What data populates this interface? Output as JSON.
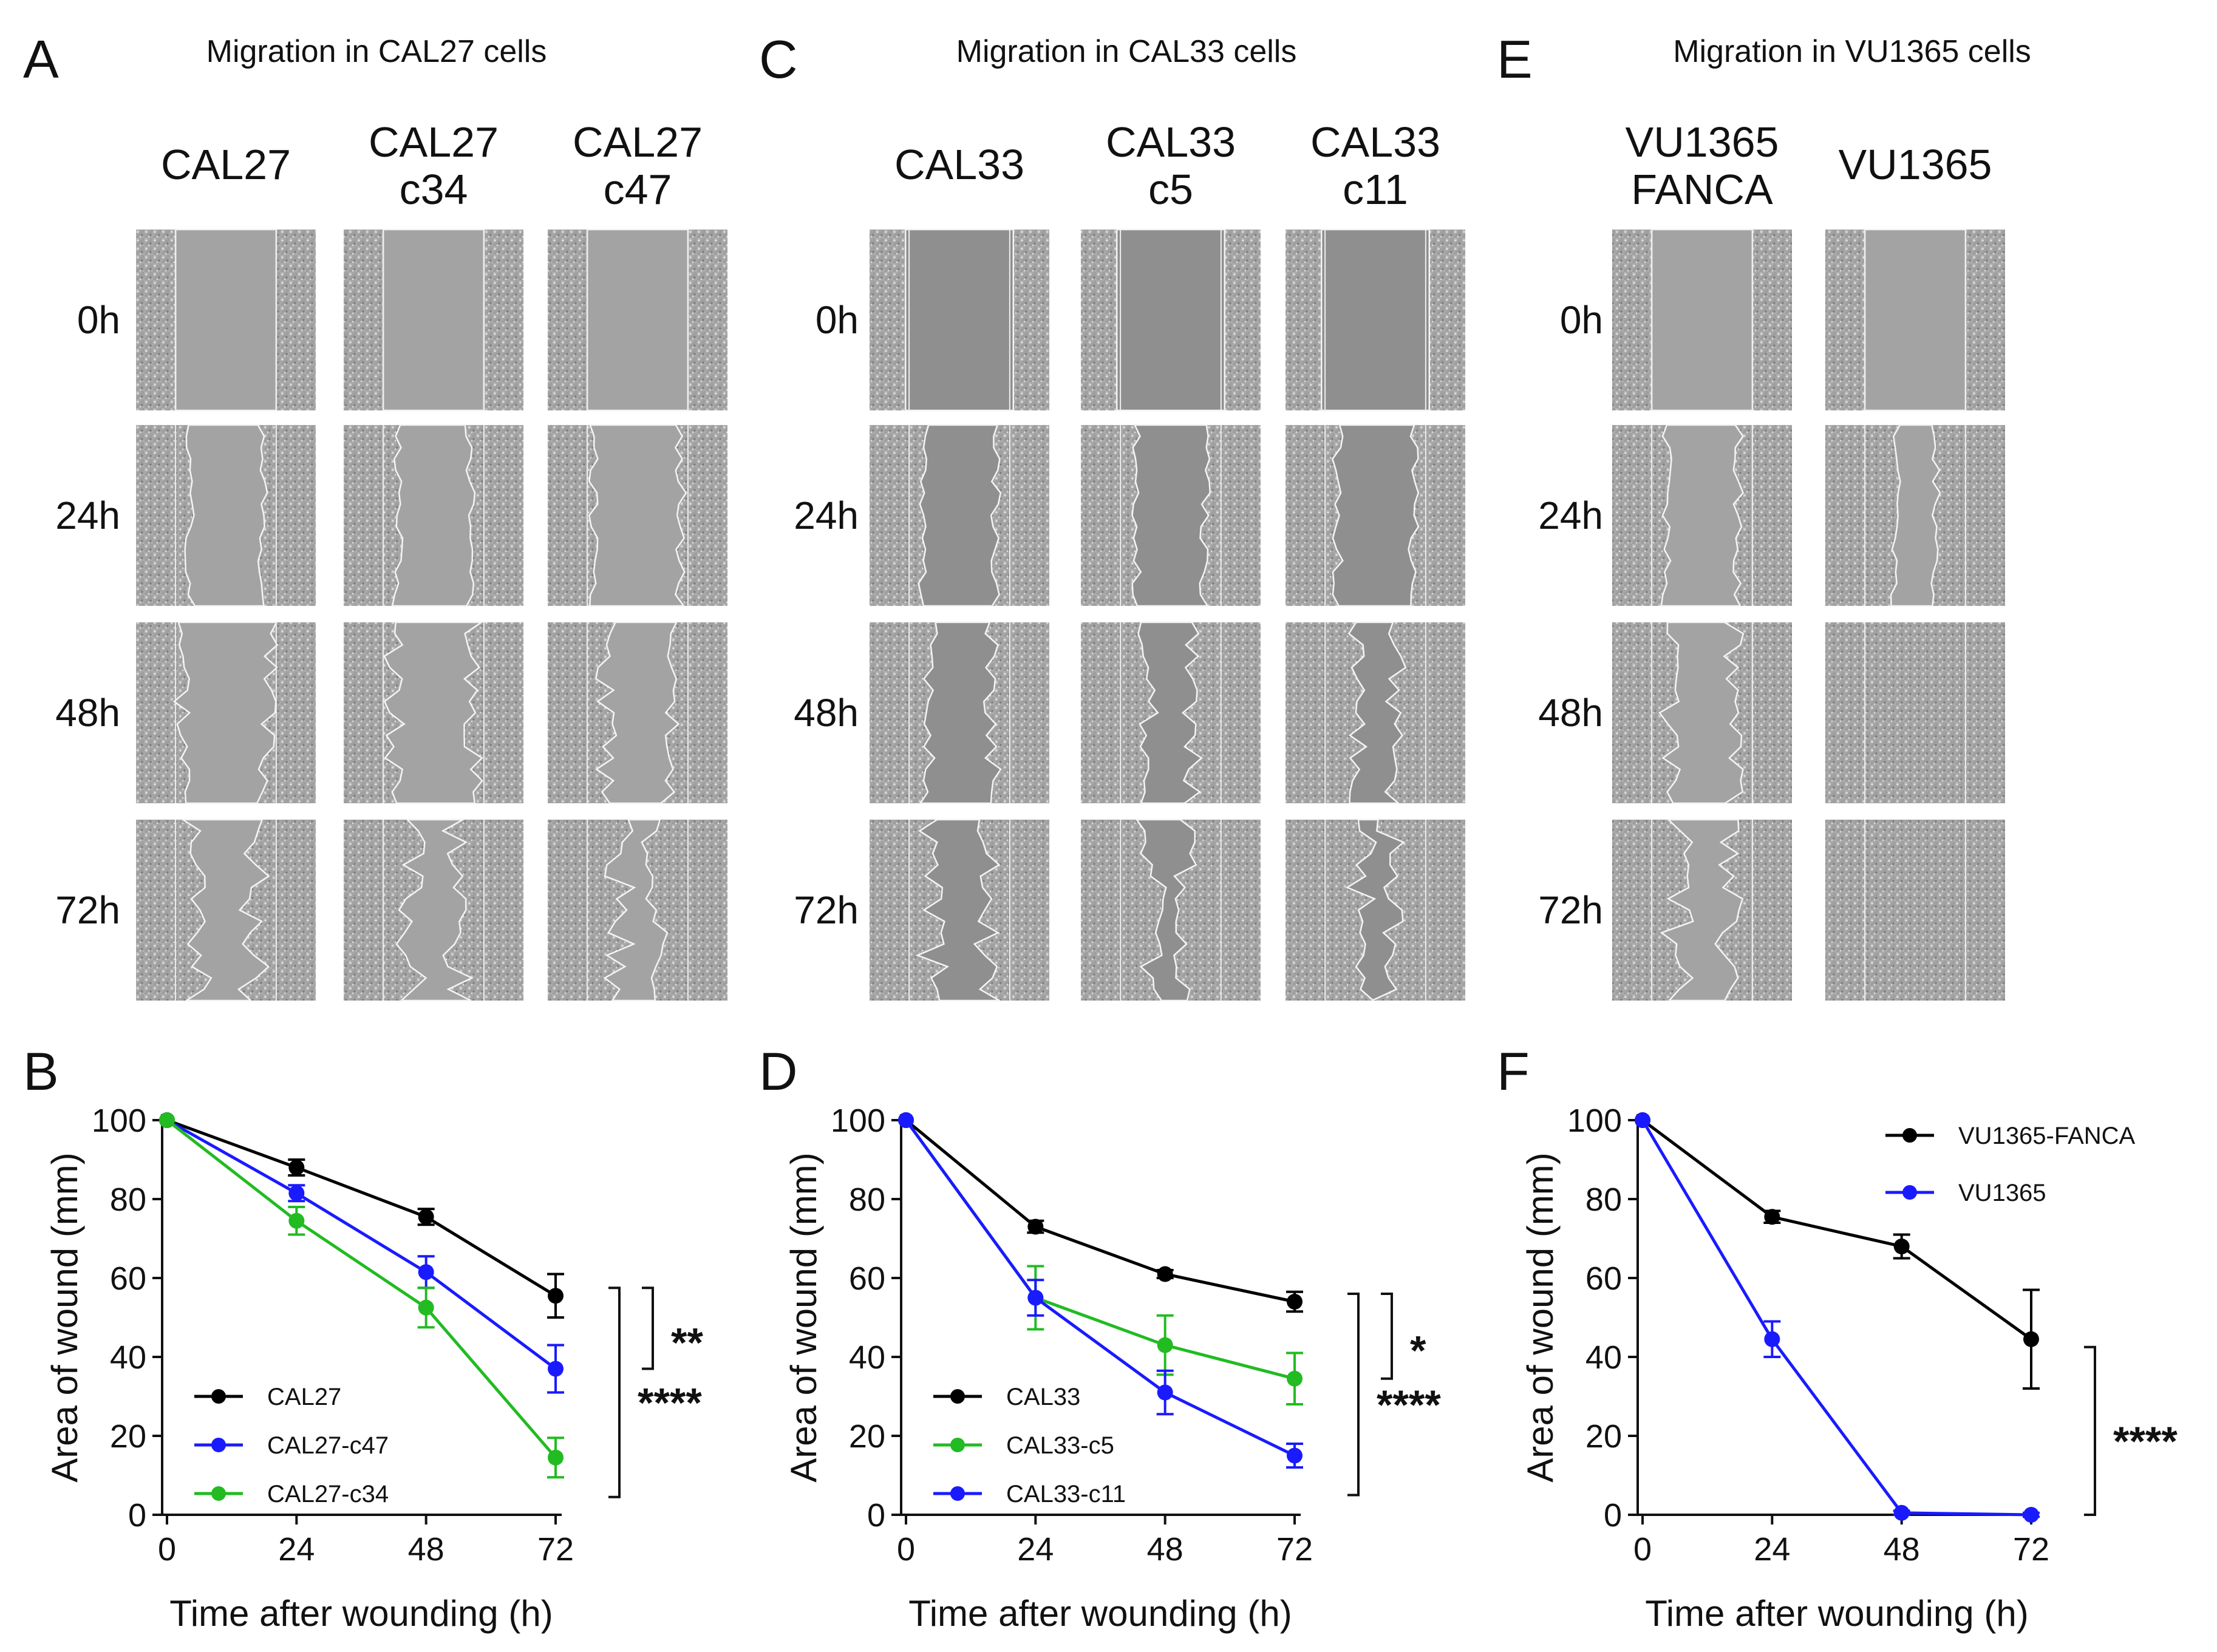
{
  "figure": {
    "panels": [
      {
        "letter": "A",
        "title": "Migration in CAL27 cells",
        "columns": [
          [
            "CAL27"
          ],
          [
            "CAL27",
            "c34"
          ],
          [
            "CAL27",
            "c47"
          ]
        ],
        "rows": [
          "0h",
          "24h",
          "48h",
          "72h"
        ],
        "open_wound": [
          [
            0.56,
            0.4,
            0.46,
            0.32
          ],
          [
            0.56,
            0.4,
            0.44,
            0.26
          ],
          [
            0.56,
            0.48,
            0.35,
            0.2
          ]
        ]
      },
      {
        "letter": "C",
        "title": "Migration in CAL33 cells",
        "columns": [
          [
            "CAL33"
          ],
          [
            "CAL33",
            "c5"
          ],
          [
            "CAL33",
            "c11"
          ]
        ],
        "rows": [
          "0h",
          "24h",
          "48h",
          "72h"
        ],
        "open_wound": [
          [
            0.6,
            0.4,
            0.34,
            0.3
          ],
          [
            0.6,
            0.38,
            0.25,
            0.2
          ],
          [
            0.6,
            0.42,
            0.22,
            0.14
          ]
        ]
      },
      {
        "letter": "E",
        "title": "Migration in VU1365 cells",
        "columns": [
          [
            "VU1365",
            "FANCA"
          ],
          [
            "VU1365"
          ]
        ],
        "rows": [
          "0h",
          "24h",
          "48h",
          "72h"
        ],
        "open_wound": [
          [
            0.56,
            0.4,
            0.36,
            0.28
          ],
          [
            0.56,
            0.22,
            0.0,
            0.0
          ]
        ]
      }
    ]
  },
  "chart_data": [
    {
      "letter": "B",
      "type": "line",
      "xlabel": "Time after wounding (h)",
      "ylabel": "Area of wound (mm)",
      "x": [
        0,
        24,
        48,
        72
      ],
      "xlim": [
        0,
        72
      ],
      "ylim": [
        0,
        100
      ],
      "yticks": [
        0,
        20,
        40,
        60,
        80,
        100
      ],
      "series": [
        {
          "name": "CAL27",
          "color": "#000000",
          "values": [
            100,
            88,
            75.5,
            55.5
          ],
          "errors": [
            0,
            2,
            2,
            5.5
          ]
        },
        {
          "name": "CAL27-c47",
          "color": "#1a1aff",
          "values": [
            100,
            81.5,
            61.5,
            37
          ],
          "errors": [
            0,
            2,
            4,
            6
          ]
        },
        {
          "name": "CAL27-c34",
          "color": "#22bb22",
          "values": [
            100,
            74.5,
            52.5,
            14.5
          ],
          "errors": [
            0,
            3.5,
            5,
            5
          ]
        }
      ],
      "significance": [
        "**",
        "****"
      ],
      "legend_position": "bottom-left"
    },
    {
      "letter": "D",
      "type": "line",
      "xlabel": "Time after wounding (h)",
      "ylabel": "Area of wound (mm)",
      "x": [
        0,
        24,
        48,
        72
      ],
      "xlim": [
        0,
        72
      ],
      "ylim": [
        0,
        100
      ],
      "yticks": [
        0,
        20,
        40,
        60,
        80,
        100
      ],
      "series": [
        {
          "name": "CAL33",
          "color": "#000000",
          "values": [
            100,
            73,
            61,
            54
          ],
          "errors": [
            0,
            1.5,
            1,
            2.5
          ]
        },
        {
          "name": "CAL33-c5",
          "color": "#22bb22",
          "values": [
            100,
            55,
            43,
            34.5
          ],
          "errors": [
            0,
            8,
            7.5,
            6.5
          ]
        },
        {
          "name": "CAL33-c11",
          "color": "#1a1aff",
          "values": [
            100,
            55,
            31,
            15
          ],
          "errors": [
            0,
            4.5,
            5.5,
            3
          ]
        }
      ],
      "significance": [
        "*",
        "****"
      ],
      "legend_position": "bottom-left"
    },
    {
      "letter": "F",
      "type": "line",
      "xlabel": "Time after wounding (h)",
      "ylabel": "Area of wound (mm)",
      "x": [
        0,
        24,
        48,
        72
      ],
      "xlim": [
        0,
        72
      ],
      "ylim": [
        0,
        100
      ],
      "yticks": [
        0,
        20,
        40,
        60,
        80,
        100
      ],
      "series": [
        {
          "name": "VU1365-FANCA",
          "color": "#000000",
          "values": [
            100,
            75.5,
            68,
            44.5
          ],
          "errors": [
            0,
            1.5,
            3,
            12.5
          ]
        },
        {
          "name": "VU1365",
          "color": "#1a1aff",
          "values": [
            100,
            44.5,
            0.5,
            0
          ],
          "errors": [
            0,
            4.5,
            0.5,
            0.5
          ]
        }
      ],
      "significance": [
        "****"
      ],
      "legend_position": "top-right"
    }
  ]
}
